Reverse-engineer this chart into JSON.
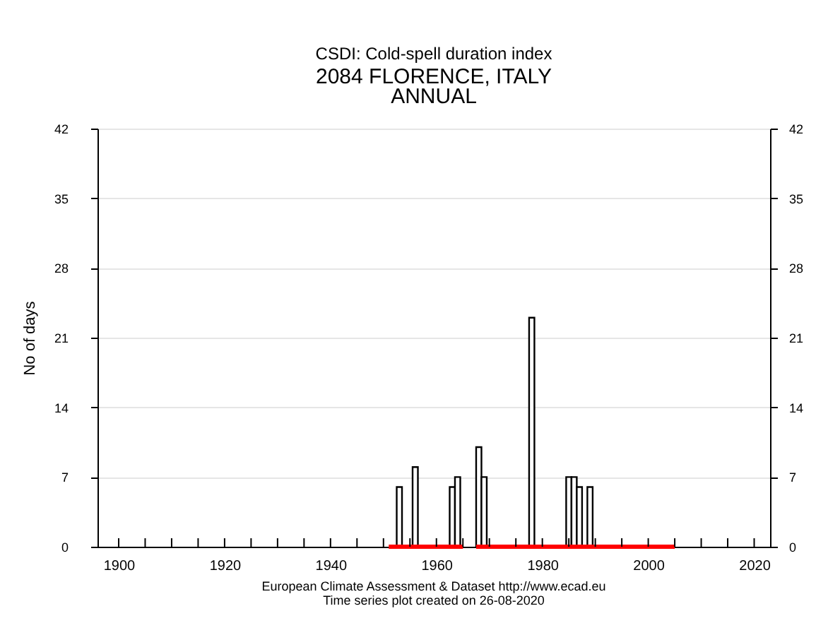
{
  "chart_data": {
    "type": "bar",
    "title": "CSDI: Cold-spell duration index",
    "subtitle": "2084 FLORENCE, ITALY\nANNUAL",
    "ylabel": "No of days",
    "x": [
      1953,
      1956,
      1963,
      1964,
      1968,
      1969,
      1978,
      1985,
      1986,
      1987,
      1989
    ],
    "series": [
      {
        "color": "#000000",
        "values": [
          6,
          8,
          6,
          7,
          10,
          7,
          23,
          7,
          7,
          6,
          6
        ]
      },
      {
        "type": "line",
        "axis": "y2",
        "color": "#ff0000",
        "x": [
          1951,
          1965
        ],
        "values": [
          0,
          0
        ]
      },
      {
        "type": "line",
        "axis": "y2",
        "color": "#ff0000",
        "x": [
          1967.5,
          2005
        ],
        "values": [
          0,
          0
        ]
      }
    ],
    "xlim": [
      1896,
      2023
    ],
    "xticks": [
      {
        "value": 1900,
        "label": "1900"
      },
      {
        "value": 1905,
        "label": null
      },
      {
        "value": 1910,
        "label": null
      },
      {
        "value": 1915,
        "label": null
      },
      {
        "value": 1920,
        "label": "1920"
      },
      {
        "value": 1925,
        "label": null
      },
      {
        "value": 1930,
        "label": null
      },
      {
        "value": 1935,
        "label": null
      },
      {
        "value": 1940,
        "label": "1940"
      },
      {
        "value": 1945,
        "label": null
      },
      {
        "value": 1950,
        "label": null
      },
      {
        "value": 1955,
        "label": null
      },
      {
        "value": 1960,
        "label": "1960"
      },
      {
        "value": 1965,
        "label": null
      },
      {
        "value": 1970,
        "label": null
      },
      {
        "value": 1975,
        "label": null
      },
      {
        "value": 1980,
        "label": "1980"
      },
      {
        "value": 1985,
        "label": null
      },
      {
        "value": 1990,
        "label": null
      },
      {
        "value": 1995,
        "label": null
      },
      {
        "value": 2000,
        "label": "2000"
      },
      {
        "value": 2005,
        "label": null
      },
      {
        "value": 2010,
        "label": null
      },
      {
        "value": 2015,
        "label": null
      },
      {
        "value": 2020,
        "label": "2020"
      }
    ],
    "ylim": [
      0,
      42
    ],
    "yticks": [
      0,
      7,
      14,
      21,
      28,
      35,
      42
    ],
    "y2lim": [
      0,
      42
    ],
    "y2ticks": [
      0,
      7,
      14,
      21,
      28,
      35,
      42
    ],
    "grid": "y",
    "annotations": [
      "European Climate Assessment & Dataset  http://www.ecad.eu",
      "Time series plot created on 26-08-2020"
    ]
  }
}
